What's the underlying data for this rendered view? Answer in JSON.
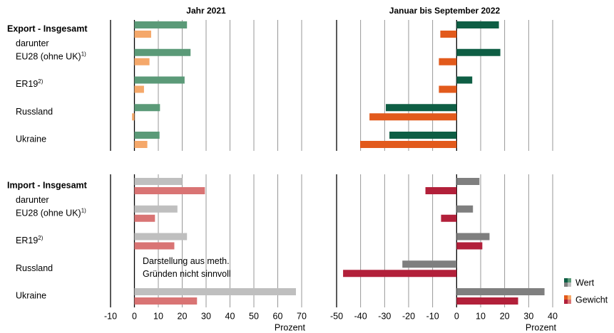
{
  "chart_data": [
    {
      "type": "bar",
      "horizontal": true,
      "title": "Jahr 2021",
      "categories": [
        "Export - Insgesamt",
        "EU28 (ohne UK)",
        "ER19",
        "Russland",
        "Ukraine"
      ],
      "category_notes": [
        null,
        "1)",
        "2)",
        null,
        null
      ],
      "subheading": "darunter",
      "series": [
        {
          "name": "Wert",
          "color": "#5b9a78",
          "values": [
            22,
            23.5,
            21,
            10.7,
            10.5
          ]
        },
        {
          "name": "Gewicht",
          "color": "#f5a86a",
          "values": [
            7,
            6.3,
            4,
            -1,
            5.4
          ]
        }
      ],
      "xlim": [
        -10,
        70
      ],
      "xticks": [
        -10,
        0,
        10,
        20,
        30,
        40,
        50,
        60,
        70
      ]
    },
    {
      "type": "bar",
      "horizontal": true,
      "title": "Januar bis September 2022",
      "series": [
        {
          "color": "#0e5e44",
          "values": [
            17.6,
            18.2,
            6.5,
            -29.5,
            -28
          ]
        },
        {
          "color": "#e25a1c",
          "values": [
            -6.8,
            -7.4,
            -7.4,
            -36.3,
            -40.2
          ]
        }
      ],
      "xlim": [
        -50,
        40
      ],
      "xticks": [
        -50,
        -40,
        -30,
        -20,
        -10,
        0,
        10,
        20,
        30,
        40
      ]
    },
    {
      "type": "bar",
      "horizontal": true,
      "categories": [
        "Import - Insgesamt",
        "EU28 (ohne UK)",
        "ER19",
        "Russland",
        "Ukraine"
      ],
      "category_notes": [
        null,
        "1)",
        "2)",
        null,
        null
      ],
      "subheading": "darunter",
      "annotation": [
        "Darstellung aus meth.",
        "Gründen nicht sinnvoll"
      ],
      "series": [
        {
          "color": "#bfbfbf",
          "values": [
            20,
            18,
            22,
            null,
            67.6
          ]
        },
        {
          "color": "#d97474",
          "values": [
            29.5,
            8.6,
            16.7,
            null,
            26.2
          ]
        }
      ],
      "xlabel": "Prozent",
      "xlim": [
        -10,
        70
      ],
      "xticks": [
        -10,
        0,
        10,
        20,
        30,
        40,
        50,
        60,
        70
      ]
    },
    {
      "type": "bar",
      "horizontal": true,
      "series": [
        {
          "color": "#7f7f7f",
          "values": [
            9.5,
            6.8,
            13.7,
            -22.6,
            36.6
          ]
        },
        {
          "color": "#b2203a",
          "values": [
            -13,
            -6.5,
            10.7,
            -47.3,
            25.6
          ]
        }
      ],
      "xlabel": "Prozent",
      "xlim": [
        -50,
        40
      ],
      "xticks": [
        -50,
        -40,
        -30,
        -20,
        -10,
        0,
        10,
        20,
        30,
        40
      ]
    }
  ]
}
